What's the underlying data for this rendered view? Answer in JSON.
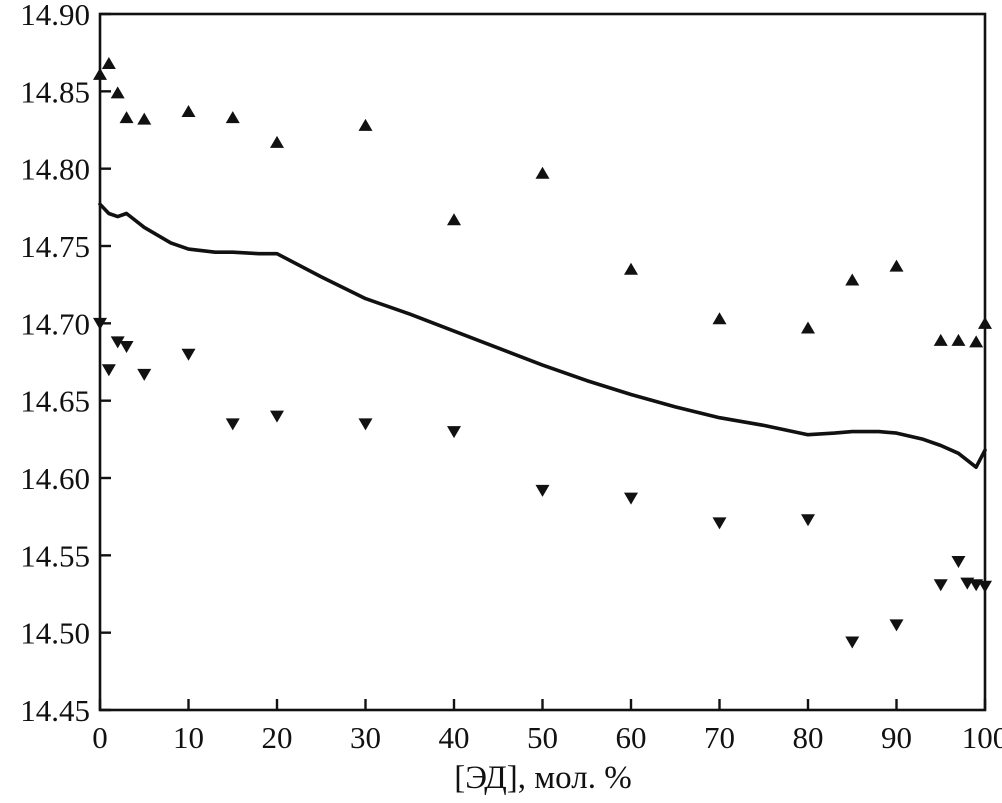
{
  "chart_data": {
    "type": "scatter",
    "title": "",
    "xlabel": "[ЭД], мол. %",
    "ylabel": "",
    "xlim": [
      0,
      100
    ],
    "ylim": [
      14.45,
      14.9
    ],
    "x_ticks": [
      0,
      10,
      20,
      30,
      40,
      50,
      60,
      70,
      80,
      90,
      100
    ],
    "y_ticks": [
      14.45,
      14.5,
      14.55,
      14.6,
      14.65,
      14.7,
      14.75,
      14.8,
      14.85,
      14.9
    ],
    "grid": false,
    "legend": "none",
    "colors": {
      "foreground": "#111111",
      "background": "#ffffff"
    },
    "series": [
      {
        "name": "upper-points",
        "kind": "scatter",
        "marker": "triangle-up",
        "points": [
          [
            0,
            14.861
          ],
          [
            1,
            14.868
          ],
          [
            2,
            14.849
          ],
          [
            3,
            14.833
          ],
          [
            5,
            14.832
          ],
          [
            10,
            14.837
          ],
          [
            15,
            14.833
          ],
          [
            20,
            14.817
          ],
          [
            30,
            14.828
          ],
          [
            40,
            14.767
          ],
          [
            50,
            14.797
          ],
          [
            60,
            14.735
          ],
          [
            70,
            14.703
          ],
          [
            80,
            14.697
          ],
          [
            85,
            14.728
          ],
          [
            90,
            14.737
          ],
          [
            95,
            14.689
          ],
          [
            97,
            14.689
          ],
          [
            99,
            14.688
          ],
          [
            100,
            14.7
          ]
        ]
      },
      {
        "name": "lower-points",
        "kind": "scatter",
        "marker": "triangle-down",
        "points": [
          [
            0,
            14.7
          ],
          [
            1,
            14.67
          ],
          [
            2,
            14.688
          ],
          [
            3,
            14.685
          ],
          [
            5,
            14.667
          ],
          [
            10,
            14.68
          ],
          [
            15,
            14.635
          ],
          [
            20,
            14.64
          ],
          [
            30,
            14.635
          ],
          [
            40,
            14.63
          ],
          [
            50,
            14.592
          ],
          [
            60,
            14.587
          ],
          [
            70,
            14.571
          ],
          [
            80,
            14.573
          ],
          [
            85,
            14.494
          ],
          [
            90,
            14.505
          ],
          [
            95,
            14.531
          ],
          [
            97,
            14.546
          ],
          [
            98,
            14.532
          ],
          [
            99,
            14.531
          ],
          [
            100,
            14.53
          ]
        ]
      },
      {
        "name": "trend-line",
        "kind": "line",
        "points": [
          [
            0,
            14.777
          ],
          [
            1,
            14.771
          ],
          [
            2,
            14.769
          ],
          [
            3,
            14.771
          ],
          [
            5,
            14.762
          ],
          [
            8,
            14.752
          ],
          [
            10,
            14.748
          ],
          [
            13,
            14.746
          ],
          [
            15,
            14.746
          ],
          [
            18,
            14.745
          ],
          [
            20,
            14.745
          ],
          [
            25,
            14.73
          ],
          [
            30,
            14.716
          ],
          [
            35,
            14.706
          ],
          [
            40,
            14.695
          ],
          [
            45,
            14.684
          ],
          [
            50,
            14.673
          ],
          [
            55,
            14.663
          ],
          [
            60,
            14.654
          ],
          [
            65,
            14.646
          ],
          [
            70,
            14.639
          ],
          [
            75,
            14.634
          ],
          [
            80,
            14.628
          ],
          [
            83,
            14.629
          ],
          [
            85,
            14.63
          ],
          [
            88,
            14.63
          ],
          [
            90,
            14.629
          ],
          [
            93,
            14.625
          ],
          [
            95,
            14.621
          ],
          [
            97,
            14.616
          ],
          [
            99,
            14.607
          ],
          [
            100,
            14.618
          ]
        ]
      }
    ]
  }
}
